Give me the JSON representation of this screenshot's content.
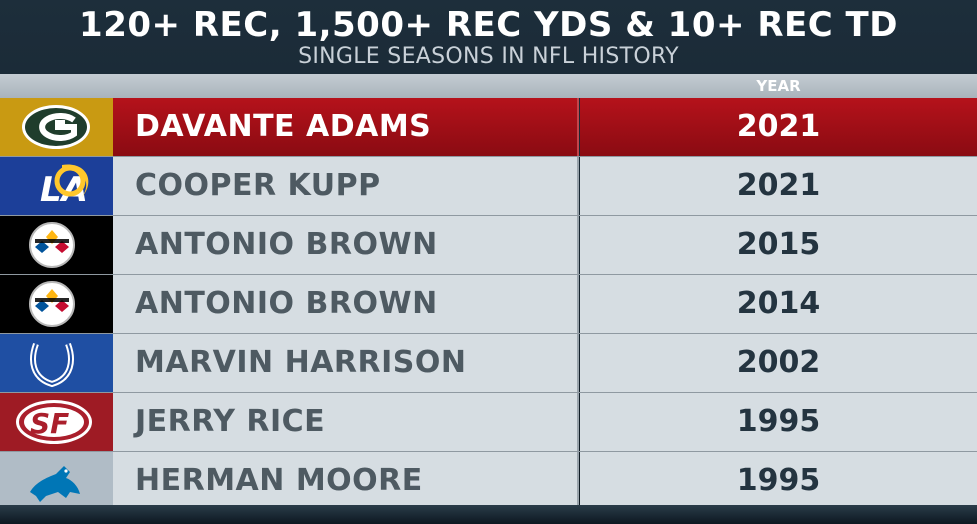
{
  "header": {
    "title": "120+ REC, 1,500+ REC YDS & 10+ REC TD",
    "subtitle": "SINGLE SEASONS IN NFL HISTORY"
  },
  "columns": {
    "year": "YEAR"
  },
  "rows": [
    {
      "player": "DAVANTE ADAMS",
      "year": "2021",
      "team_logo": "packers-logo",
      "highlighted": true
    },
    {
      "player": "COOPER KUPP",
      "year": "2021",
      "team_logo": "rams-logo",
      "highlighted": false
    },
    {
      "player": "ANTONIO BROWN",
      "year": "2015",
      "team_logo": "steelers-logo",
      "highlighted": false
    },
    {
      "player": "ANTONIO BROWN",
      "year": "2014",
      "team_logo": "steelers-logo",
      "highlighted": false
    },
    {
      "player": "MARVIN HARRISON",
      "year": "2002",
      "team_logo": "colts-logo",
      "highlighted": false
    },
    {
      "player": "JERRY RICE",
      "year": "1995",
      "team_logo": "49ers-logo",
      "highlighted": false
    },
    {
      "player": "HERMAN MOORE",
      "year": "1995",
      "team_logo": "lions-logo",
      "highlighted": false
    }
  ],
  "colors": {
    "highlight": "#b5121b",
    "packers": "#1f3d2c",
    "rams": "#1c3f99",
    "steelers": "#000000",
    "colts": "#1f4fa3",
    "niners": "#9e1b24",
    "lions": "#b0bcc6"
  }
}
